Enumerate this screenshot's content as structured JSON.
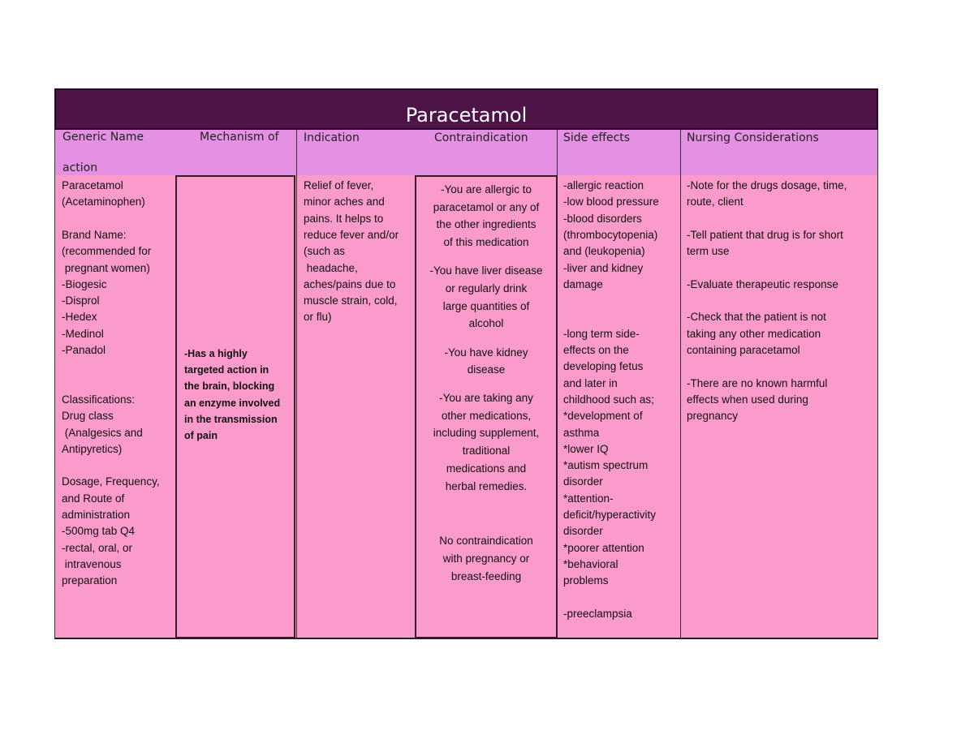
{
  "title": "Paracetamol",
  "header": [
    "Generic Name",
    "Mechanism of",
    "action",
    "Indication",
    "Contraindication",
    "Side effects",
    "Nursing Considerations"
  ],
  "columns": [
    [
      [
        "Paracetamol",
        "(Acetaminophen)"
      ],
      [
        "Brand Name:",
        "(recommended for",
        " pregnant women)",
        "-Biogesic",
        "-Disprol",
        "-Hedex",
        "-Medinol",
        "-Panadol"
      ],
      [
        "Classifications:",
        "Drug class",
        " (Analgesics and",
        "Antipyretics)"
      ],
      [
        "Dosage, Frequency,",
        "and Route of",
        "administration",
        "-500mg tab Q4",
        "-rectal, oral, or",
        " intravenous",
        "preparation"
      ]
    ],
    [
      [
        "-Has a highly",
        "targeted action in",
        "the brain, blocking",
        "an enzyme involved",
        "in the transmission",
        "of pain"
      ]
    ],
    [
      [
        "Relief of fever,",
        "minor aches and",
        "pains. It helps to",
        "reduce fever and/or",
        "(such as",
        " headache,",
        "aches/pains due to",
        "muscle strain, cold,",
        "or flu)"
      ]
    ],
    [
      [
        "-You are allergic to",
        "paracetamol or any of",
        "the other ingredients",
        "of this medication"
      ],
      [
        "-You have liver disease",
        "or regularly drink",
        "large quantities of",
        "alcohol"
      ],
      [
        "-You have kidney",
        "disease"
      ],
      [
        "-You are taking any",
        "other medications,",
        "including supplement,",
        "traditional",
        "medications and",
        "herbal remedies."
      ],
      [
        "No contraindication",
        "with pregnancy or",
        "breast-feeding"
      ]
    ],
    [
      [
        "-allergic reaction",
        "-low blood pressure",
        "-blood disorders",
        "(thrombocytopenia)",
        "and (leukopenia)",
        "-liver and kidney",
        "damage"
      ],
      [
        "-long term side-",
        "effects on the",
        "developing fetus",
        "and later in",
        "childhood such as;",
        "*development of",
        "asthma",
        "*lower IQ",
        "*autism spectrum",
        "disorder",
        "*attention-",
        "deficit/hyperactivity",
        "disorder",
        "*poorer attention",
        "*behavioral",
        "problems"
      ],
      [
        "-preeclampsia"
      ]
    ],
    [
      [
        "-Note for the drugs dosage, time,",
        "route, client"
      ],
      [
        "-Tell patient that drug is for short",
        "term use"
      ],
      [
        "-Evaluate therapeutic response"
      ],
      [
        "-Check that the patient is not",
        "taking any other medication",
        "containing paracetamol"
      ],
      [
        "-There are no known harmful",
        "effects when used during",
        "pregnancy"
      ]
    ]
  ]
}
